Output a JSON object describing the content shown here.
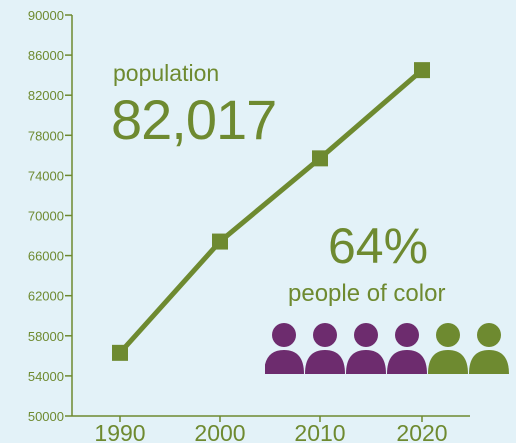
{
  "chart_data": {
    "type": "line",
    "title": "",
    "xlabel": "",
    "ylabel": "",
    "x": [
      "1990",
      "2000",
      "2010",
      "2020"
    ],
    "series": [
      {
        "values": [
          56300,
          67400,
          75700,
          84500
        ]
      }
    ],
    "ylim": [
      50000,
      90000
    ],
    "yticks": [
      50000,
      54000,
      58000,
      62000,
      66000,
      70000,
      74000,
      78000,
      82000,
      86000,
      90000
    ],
    "grid": false,
    "colors": {
      "line": "#6e8a30",
      "axis": "#6e8a30",
      "background": "#e3f2f8"
    }
  },
  "stats": {
    "population_label": "population",
    "population_value": "82,017",
    "percent_value": "64%",
    "percent_label": "people of color"
  },
  "people_icons": {
    "total": 6,
    "highlighted": 4,
    "highlight_color": "#6d2c6e",
    "other_color": "#6e8a30"
  }
}
